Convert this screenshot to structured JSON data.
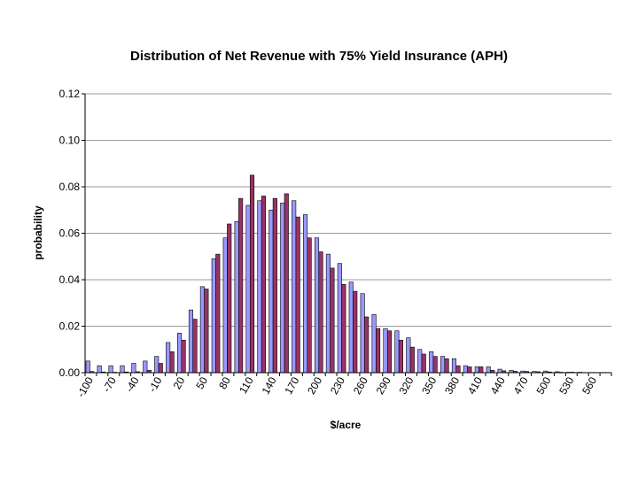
{
  "chart_data": {
    "type": "bar",
    "title": "Distribution of Net Revenue with 75% Yield Insurance (APH)",
    "xlabel": "$/acre",
    "ylabel": "probability",
    "ylim": [
      0,
      0.12
    ],
    "yticks": [
      "0.00",
      "0.02",
      "0.04",
      "0.06",
      "0.08",
      "0.10",
      "0.12"
    ],
    "grid": true,
    "legend": "none",
    "categories": [
      "-100",
      "-85",
      "-70",
      "-55",
      "-40",
      "-25",
      "-10",
      "5",
      "20",
      "35",
      "50",
      "65",
      "80",
      "95",
      "110",
      "125",
      "140",
      "155",
      "170",
      "185",
      "200",
      "215",
      "230",
      "245",
      "260",
      "275",
      "290",
      "305",
      "320",
      "335",
      "350",
      "365",
      "380",
      "395",
      "410",
      "425",
      "440",
      "455",
      "470",
      "485",
      "500",
      "515",
      "530",
      "545",
      "560",
      "575"
    ],
    "x_tick_labels": [
      "-100",
      "-70",
      "-40",
      "-10",
      "20",
      "50",
      "80",
      "110",
      "140",
      "170",
      "200",
      "230",
      "260",
      "290",
      "320",
      "350",
      "380",
      "410",
      "440",
      "470",
      "500",
      "530",
      "560"
    ],
    "series": [
      {
        "color": "#9999ff",
        "values": [
          0.005,
          0.003,
          0.003,
          0.003,
          0.004,
          0.005,
          0.007,
          0.013,
          0.017,
          0.027,
          0.037,
          0.049,
          0.058,
          0.065,
          0.072,
          0.074,
          0.07,
          0.073,
          0.074,
          0.068,
          0.058,
          0.051,
          0.047,
          0.039,
          0.034,
          0.025,
          0.019,
          0.018,
          0.015,
          0.01,
          0.009,
          0.007,
          0.006,
          0.003,
          0.0025,
          0.0025,
          0.0015,
          0.001,
          0.0007,
          0.0005,
          0.0007,
          0.0004,
          0.0002,
          0.0002,
          0.0001,
          0.0001
        ]
      },
      {
        "color": "#993366",
        "values": [
          0.0005,
          0.0003,
          0.0002,
          0.0003,
          0.0004,
          0.001,
          0.004,
          0.009,
          0.014,
          0.023,
          0.036,
          0.051,
          0.064,
          0.075,
          0.085,
          0.076,
          0.075,
          0.077,
          0.067,
          0.058,
          0.052,
          0.045,
          0.038,
          0.035,
          0.024,
          0.019,
          0.018,
          0.014,
          0.011,
          0.008,
          0.007,
          0.006,
          0.003,
          0.0025,
          0.0025,
          0.001,
          0.0008,
          0.0006,
          0.0005,
          0.0004,
          0.0003,
          0.0002,
          0.0002,
          0.0001,
          0.0001,
          0.0001
        ]
      }
    ]
  }
}
